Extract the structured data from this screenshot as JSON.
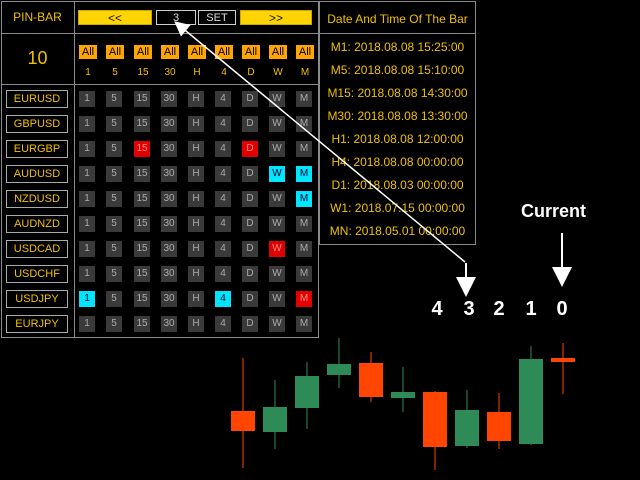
{
  "panel": {
    "title": "PIN-BAR",
    "prev_label": "<<",
    "bar_value": "3",
    "set_label": "SET",
    "next_label": ">>",
    "count": "10",
    "all_label": "All",
    "timeframes": [
      "1",
      "5",
      "15",
      "30",
      "H",
      "4",
      "D",
      "W",
      "M"
    ],
    "symbols": [
      {
        "name": "EURUSD",
        "states": [
          "n",
          "n",
          "n",
          "n",
          "n",
          "n",
          "n",
          "n",
          "n"
        ]
      },
      {
        "name": "GBPUSD",
        "states": [
          "n",
          "n",
          "n",
          "n",
          "n",
          "n",
          "n",
          "n",
          "n"
        ]
      },
      {
        "name": "EURGBP",
        "states": [
          "n",
          "n",
          "r",
          "n",
          "n",
          "n",
          "r",
          "n",
          "n"
        ]
      },
      {
        "name": "AUDUSD",
        "states": [
          "n",
          "n",
          "n",
          "n",
          "n",
          "n",
          "n",
          "c",
          "c"
        ]
      },
      {
        "name": "NZDUSD",
        "states": [
          "n",
          "n",
          "n",
          "n",
          "n",
          "n",
          "n",
          "n",
          "c"
        ]
      },
      {
        "name": "AUDNZD",
        "states": [
          "n",
          "n",
          "n",
          "n",
          "n",
          "n",
          "n",
          "n",
          "n"
        ]
      },
      {
        "name": "USDCAD",
        "states": [
          "n",
          "n",
          "n",
          "n",
          "n",
          "n",
          "n",
          "r",
          "n"
        ]
      },
      {
        "name": "USDCHF",
        "states": [
          "n",
          "n",
          "n",
          "n",
          "n",
          "n",
          "n",
          "n",
          "n"
        ]
      },
      {
        "name": "USDJPY",
        "states": [
          "c",
          "n",
          "n",
          "n",
          "n",
          "c",
          "n",
          "n",
          "r"
        ]
      },
      {
        "name": "EURJPY",
        "states": [
          "n",
          "n",
          "n",
          "n",
          "n",
          "n",
          "n",
          "n",
          "n"
        ]
      }
    ]
  },
  "datetime": {
    "title": "Date And Time Of The Bar",
    "rows": [
      "M1: 2018.08.08 15:25:00",
      "M5: 2018.08.08 15:10:00",
      "M15: 2018.08.08 14:30:00",
      "M30: 2018.08.08 13:30:00",
      "H1: 2018.08.08 12:00:00",
      "H4: 2018.08.08 00:00:00",
      "D1: 2018.08.03 00:00:00",
      "W1: 2018.07.15 00:00:00",
      "MN: 2018.05.01 00:00:00"
    ]
  },
  "annotation": {
    "current_label": "Current",
    "digits": [
      "4",
      "3",
      "2",
      "1",
      "0"
    ]
  },
  "colors": {
    "bull": "#2e8b57",
    "bear": "#ff4500",
    "accent": "#f0c000"
  },
  "candles": [
    {
      "type": "bear"
    },
    {
      "type": "bull"
    },
    {
      "type": "bull"
    },
    {
      "type": "bull"
    },
    {
      "type": "bear"
    },
    {
      "type": "bull"
    },
    {
      "type": "bear"
    },
    {
      "type": "bull"
    },
    {
      "type": "bear"
    },
    {
      "type": "bull"
    },
    {
      "type": "bear"
    }
  ]
}
